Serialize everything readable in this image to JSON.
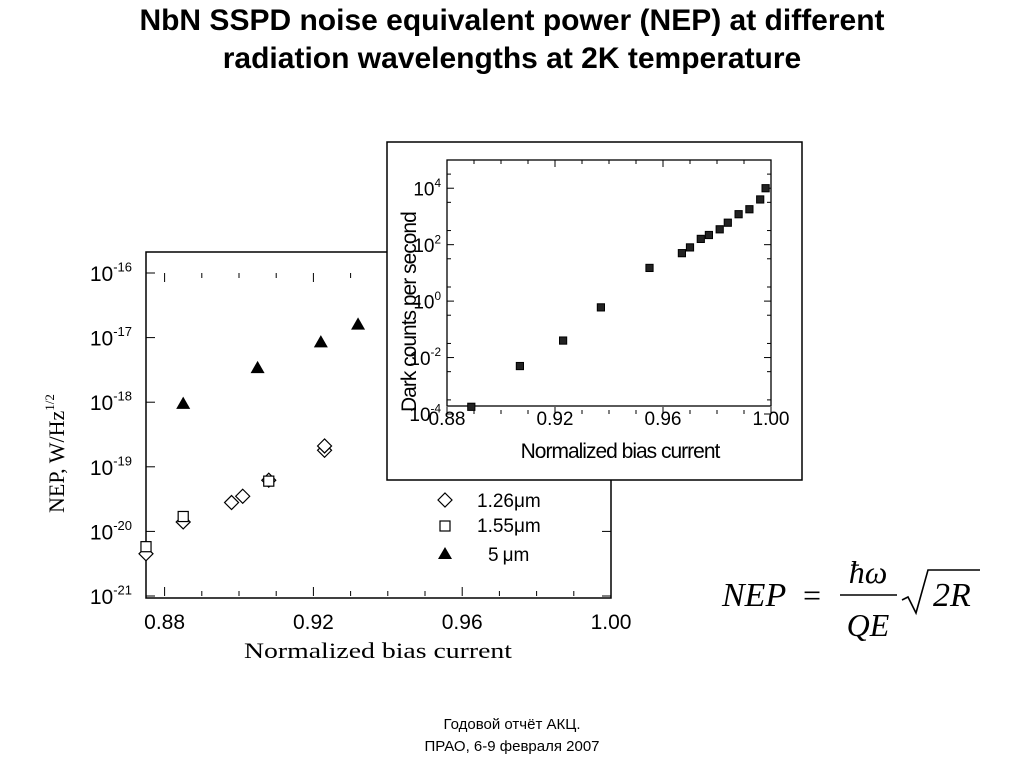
{
  "slide": {
    "title_line1": "NbN SSPD noise equivalent power (NEP) at different",
    "title_line2": "radiation wavelengths at 2K temperature",
    "footer_line1": "Годовой отчёт АКЦ.",
    "footer_line2": "ПРАО, 6-9 февраля 2007"
  },
  "formula": {
    "lhs": "NEP",
    "equals": "=",
    "numerator": "ħω",
    "denominator": "QE",
    "radicand": "2R"
  },
  "chart_data": [
    {
      "type": "scatter",
      "title": "",
      "xlabel": "Normalized bias current",
      "ylabel": "NEP, W/Hz",
      "ylabel_sup": "1/2",
      "xlim": [
        0.875,
        1.0
      ],
      "ylim": [
        1e-21,
        1e-16
      ],
      "yscale": "log",
      "xticks": [
        "0.88",
        "0.92",
        "0.96",
        "1.00"
      ],
      "yticks": [
        {
          "base": "10",
          "exp": "-16"
        },
        {
          "base": "10",
          "exp": "-17"
        },
        {
          "base": "10",
          "exp": "-18"
        },
        {
          "base": "10",
          "exp": "-19"
        },
        {
          "base": "10",
          "exp": "-20"
        },
        {
          "base": "10",
          "exp": "-21"
        }
      ],
      "legend_position": "bottom-right",
      "series": [
        {
          "name": "1.26 μm",
          "label_value": "1.26",
          "label_unit": "μm",
          "marker": "diamond",
          "points": [
            [
              0.875,
              4.5e-21
            ],
            [
              0.885,
              1.4e-20
            ],
            [
              0.898,
              2.8e-20
            ],
            [
              0.901,
              3.5e-20
            ],
            [
              0.908,
              6.2e-20
            ],
            [
              0.923,
              1.8e-19
            ],
            [
              0.923,
              2.1e-19
            ]
          ]
        },
        {
          "name": "1.55 μm",
          "label_value": "1.55",
          "label_unit": "μm",
          "marker": "square",
          "points": [
            [
              0.875,
              5.8e-21
            ],
            [
              0.885,
              1.7e-20
            ],
            [
              0.908,
              6e-20
            ]
          ]
        },
        {
          "name": "5 μm",
          "label_value": "5",
          "label_unit": "μm",
          "marker": "triangle",
          "points": [
            [
              0.885,
              9.5e-19
            ],
            [
              0.905,
              3.4e-18
            ],
            [
              0.922,
              8.5e-18
            ],
            [
              0.932,
              1.6e-17
            ]
          ]
        }
      ]
    },
    {
      "type": "scatter",
      "title": "",
      "xlabel": "Normalized bias current",
      "ylabel": "Dark counts per second",
      "xlim": [
        0.88,
        1.0
      ],
      "ylim": [
        0.0001,
        100000.0
      ],
      "yscale": "log",
      "xticks": [
        "0.88",
        "0.92",
        "0.96",
        "1.00"
      ],
      "yticks": [
        {
          "base": "10",
          "exp": "4"
        },
        {
          "base": "10",
          "exp": "2"
        },
        {
          "base": "10",
          "exp": "0"
        },
        {
          "base": "10",
          "exp": "-2"
        },
        {
          "base": "10",
          "exp": "-4"
        }
      ],
      "series": [
        {
          "marker": "filled-square",
          "points": [
            [
              0.889,
              0.00018
            ],
            [
              0.907,
              0.005
            ],
            [
              0.923,
              0.04
            ],
            [
              0.937,
              0.6
            ],
            [
              0.955,
              15
            ],
            [
              0.967,
              50
            ],
            [
              0.97,
              80
            ],
            [
              0.974,
              160
            ],
            [
              0.977,
              220
            ],
            [
              0.981,
              350
            ],
            [
              0.984,
              600
            ],
            [
              0.988,
              1200
            ],
            [
              0.992,
              1800
            ],
            [
              0.996,
              4000
            ],
            [
              0.998,
              10000
            ]
          ]
        }
      ]
    }
  ]
}
